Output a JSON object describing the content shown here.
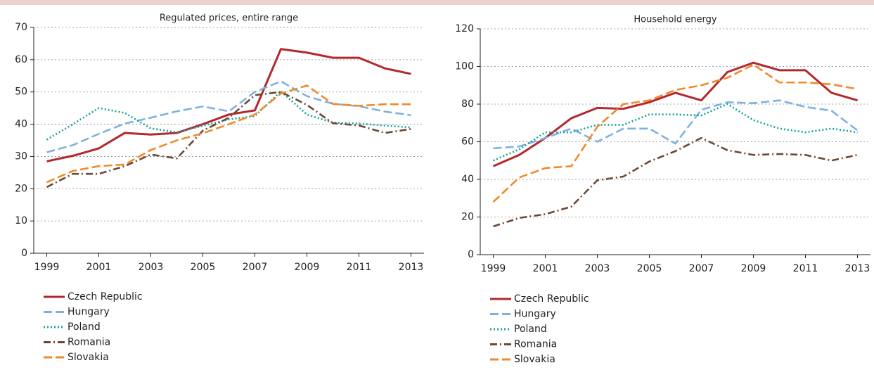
{
  "chart_data": [
    {
      "type": "line",
      "title": "Regulated prices, entire range",
      "x": [
        1999,
        2000,
        2001,
        2002,
        2003,
        2004,
        2005,
        2006,
        2007,
        2008,
        2009,
        2010,
        2011,
        2012,
        2013
      ],
      "xlim": [
        1998.5,
        2013.5
      ],
      "xticks": [
        1999,
        2001,
        2003,
        2005,
        2007,
        2009,
        2011,
        2013
      ],
      "ylim": [
        0,
        70
      ],
      "yticks": [
        0,
        10,
        20,
        30,
        40,
        50,
        60,
        70
      ],
      "grid": true,
      "series": [
        {
          "name": "Czech Republic",
          "color": "#b3282d",
          "dash": "solid",
          "values": [
            28.5,
            30.2,
            32.5,
            37.3,
            36.8,
            37.3,
            40,
            43,
            44.3,
            63.3,
            62.2,
            60.6,
            60.6,
            57.3,
            55.6
          ]
        },
        {
          "name": "Hungary",
          "color": "#7eb1e2",
          "dash": "dashed",
          "values": [
            31.3,
            33.5,
            37,
            40.2,
            42,
            44,
            45.5,
            44,
            50,
            53.3,
            48.7,
            46.3,
            45.6,
            43.9,
            42.8
          ]
        },
        {
          "name": "Poland",
          "color": "#16a39a",
          "dash": "dotted",
          "values": [
            35.2,
            40,
            45,
            43.5,
            38.7,
            37.5,
            39.5,
            41.5,
            42.5,
            50.2,
            43,
            40.5,
            40.2,
            39.6,
            39
          ]
        },
        {
          "name": "Romania",
          "color": "#6b4935",
          "dash": "dashdot",
          "values": [
            20.5,
            24.6,
            24.6,
            27,
            30.6,
            29.4,
            38,
            42,
            49,
            50,
            46,
            40.3,
            39.6,
            37.3,
            38.5
          ]
        },
        {
          "name": "Slovakia",
          "color": "#f08a2c",
          "dash": "dashed",
          "values": [
            22,
            25.5,
            27,
            27.5,
            32,
            35,
            37.2,
            40,
            43,
            49.5,
            52,
            46.3,
            45.7,
            46.2,
            46.2
          ]
        }
      ]
    },
    {
      "type": "line",
      "title": "Household energy",
      "x": [
        1999,
        2000,
        2001,
        2002,
        2003,
        2004,
        2005,
        2006,
        2007,
        2008,
        2009,
        2010,
        2011,
        2012,
        2013
      ],
      "xlim": [
        1998.5,
        2013.5
      ],
      "xticks": [
        1999,
        2001,
        2003,
        2005,
        2007,
        2009,
        2011,
        2013
      ],
      "ylim": [
        0,
        120
      ],
      "yticks": [
        0,
        20,
        40,
        60,
        80,
        100,
        120
      ],
      "grid": true,
      "series": [
        {
          "name": "Czech Republic",
          "color": "#b3282d",
          "dash": "solid",
          "values": [
            47,
            53,
            62,
            72.5,
            78,
            77.5,
            81,
            86,
            82,
            97,
            102,
            98,
            98,
            86,
            82
          ]
        },
        {
          "name": "Hungary",
          "color": "#7eb1e2",
          "dash": "dashed",
          "values": [
            56.5,
            57.5,
            62,
            67,
            60,
            67,
            67,
            59,
            77,
            81,
            80.5,
            82,
            78.5,
            76.5,
            66
          ]
        },
        {
          "name": "Poland",
          "color": "#16a39a",
          "dash": "dotted",
          "values": [
            50,
            56,
            65,
            65,
            69,
            69,
            74.5,
            74.5,
            74,
            80,
            71.5,
            67,
            65,
            67,
            65
          ]
        },
        {
          "name": "Romania",
          "color": "#6b4935",
          "dash": "dashdot",
          "values": [
            15,
            19.5,
            21.5,
            25.5,
            39.5,
            41.5,
            49.5,
            55,
            62,
            55.5,
            53,
            53.5,
            53,
            50,
            53
          ]
        },
        {
          "name": "Slovakia",
          "color": "#f08a2c",
          "dash": "dashed",
          "values": [
            28,
            41,
            46,
            47,
            68,
            80,
            82,
            87.5,
            90,
            94,
            101,
            91.5,
            91.5,
            90.5,
            88
          ]
        }
      ]
    }
  ]
}
